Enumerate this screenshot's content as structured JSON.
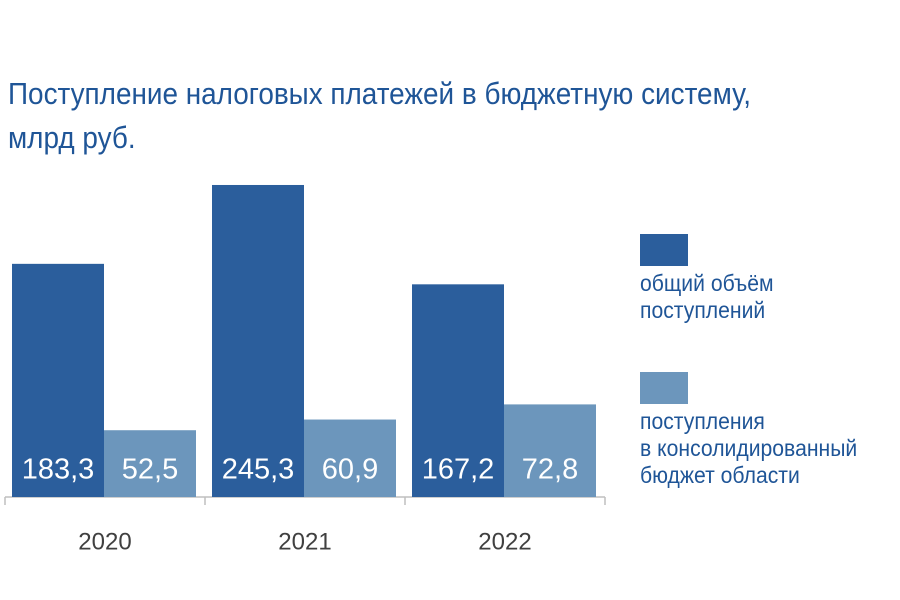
{
  "chart_data": {
    "type": "bar",
    "title": "Поступление налоговых платежей в бюджетную систему,\nмлрд руб.",
    "categories": [
      "2020",
      "2021",
      "2022"
    ],
    "series": [
      {
        "name": "общий объём\nпоступлений",
        "color": "#2b5e9c",
        "values": [
          183.3,
          245.3,
          167.2
        ],
        "value_labels": [
          "183,3",
          "245,3",
          "167,2"
        ]
      },
      {
        "name": "поступления\nв консолидированный\nбюджет области",
        "color": "#6c96bc",
        "values": [
          52.5,
          60.9,
          72.8
        ],
        "value_labels": [
          "52,5",
          "60,9",
          "72,8"
        ]
      }
    ]
  }
}
